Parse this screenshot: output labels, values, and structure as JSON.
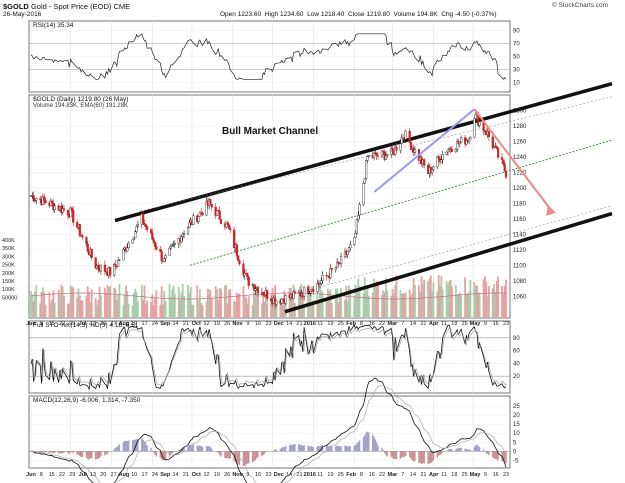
{
  "header": {
    "ticker": "$GOLD",
    "description": "Gold - Spot Price (EOD)",
    "exchange": "CME",
    "date": "26-May-2016",
    "open": "Open 1223.60",
    "high": "High 1234.60",
    "low": "Low 1218.40",
    "close": "Close 1219.80",
    "volume": "Volume 194.8K",
    "change": "Chg -4.50 (-0.37%)",
    "watermark": "© StockCharts.com"
  },
  "panels": {
    "rsi": {
      "label": "RSI(14) 35.34",
      "ticks": [
        "90",
        "70",
        "50",
        "30",
        "10"
      ]
    },
    "price": {
      "label": "$GOLD (Daily) 1219.80 (26 May)",
      "legend_volume": "Volume 194.83K, EMA(60) 191.28K",
      "annotation": "Bull Market Channel",
      "ticks": [
        "1300",
        "1280",
        "1260",
        "1240",
        "1220",
        "1200",
        "1180",
        "1160",
        "1140",
        "1120",
        "1100",
        "1080",
        "1060"
      ],
      "volume_ticks": [
        "400K",
        "350K",
        "300K",
        "250K",
        "200K",
        "150K",
        "100K",
        "50000"
      ]
    },
    "sto": {
      "label": "Full STO %K(14,3) %D(3) 4.18, 6.51",
      "ticks": [
        "80",
        "60",
        "40",
        "20"
      ]
    },
    "macd": {
      "label": "MACD(12,26,9) -6.006, 1.314, -7.350",
      "ticks": [
        "25",
        "20",
        "15",
        "10",
        "5",
        "0",
        "-5"
      ]
    }
  },
  "x_axis_labels": [
    "Jun",
    "8",
    "15",
    "22",
    "29",
    "Jul",
    "13",
    "20",
    "27",
    "Aug",
    "10",
    "17",
    "24",
    "Sep",
    "14",
    "21",
    "Oct",
    "12",
    "19",
    "26",
    "Nov",
    "9",
    "16",
    "23",
    "Dec",
    "14",
    "21",
    "2016",
    "11",
    "19",
    "25",
    "Feb",
    "8",
    "16",
    "22",
    "Mar",
    "7",
    "14",
    "21",
    "Apr",
    "11",
    "18",
    "25",
    "May",
    "9",
    "16",
    "23"
  ],
  "chart_data": {
    "type": "candlestick",
    "title": "$GOLD (Daily)",
    "x_range": [
      "2015-06-01",
      "2016-05-26"
    ],
    "price_range": [
      1050,
      1310
    ],
    "price_points": [
      {
        "date": "2015-06-01",
        "close": 1190
      },
      {
        "date": "2015-06-15",
        "close": 1180
      },
      {
        "date": "2015-07-01",
        "close": 1168
      },
      {
        "date": "2015-07-20",
        "close": 1100
      },
      {
        "date": "2015-08-01",
        "close": 1090
      },
      {
        "date": "2015-08-24",
        "close": 1160
      },
      {
        "date": "2015-09-10",
        "close": 1105
      },
      {
        "date": "2015-09-25",
        "close": 1145
      },
      {
        "date": "2015-10-14",
        "close": 1180
      },
      {
        "date": "2015-10-28",
        "close": 1150
      },
      {
        "date": "2015-11-12",
        "close": 1080
      },
      {
        "date": "2015-12-03",
        "close": 1055
      },
      {
        "date": "2015-12-17",
        "close": 1060
      },
      {
        "date": "2016-01-04",
        "close": 1075
      },
      {
        "date": "2016-01-20",
        "close": 1100
      },
      {
        "date": "2016-02-01",
        "close": 1130
      },
      {
        "date": "2016-02-11",
        "close": 1240
      },
      {
        "date": "2016-03-01",
        "close": 1245
      },
      {
        "date": "2016-03-10",
        "close": 1270
      },
      {
        "date": "2016-03-28",
        "close": 1220
      },
      {
        "date": "2016-04-11",
        "close": 1250
      },
      {
        "date": "2016-04-28",
        "close": 1265
      },
      {
        "date": "2016-05-02",
        "close": 1295
      },
      {
        "date": "2016-05-12",
        "close": 1270
      },
      {
        "date": "2016-05-26",
        "close": 1219.8
      }
    ],
    "annotations": [
      "Bull Market Channel"
    ],
    "indicators": {
      "RSI(14)": 35.34,
      "Full STO %K(14,3)": 4.18,
      "%D(3)": 6.51,
      "MACD(12,26,9)": -6.006,
      "signal": 1.314,
      "histogram": -7.35,
      "Volume": "194.83K",
      "EMA(60)": "191.28K"
    },
    "legend": "top-left",
    "grid": true
  },
  "colors": {
    "up": "#1a1a1a",
    "down": "#cc2222",
    "channel": "#111111",
    "midline": "#2e8b2e",
    "trend_up": "#9999ee",
    "trend_down": "#ee8888",
    "volume_up": "#aacca8",
    "volume_down": "#e8a0a0"
  }
}
